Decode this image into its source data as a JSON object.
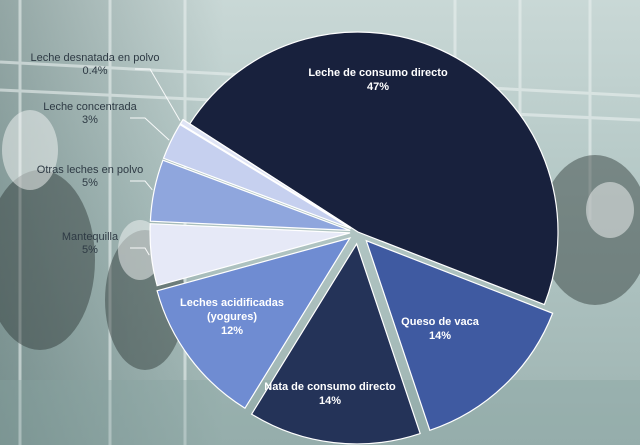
{
  "chart_data": {
    "type": "pie",
    "title": "",
    "slices": [
      {
        "label": "Leche de consumo directo",
        "value": 47,
        "value_label": "47%",
        "color": "#18213d"
      },
      {
        "label": "Queso de vaca",
        "value": 14,
        "value_label": "14%",
        "color": "#3f5aa1"
      },
      {
        "label": "Nata de consumo directo",
        "value": 14,
        "value_label": "14%",
        "color": "#243358"
      },
      {
        "label": "Leches acidificadas (yogures)",
        "label_lines": [
          "Leches acidificadas",
          "(yogures)"
        ],
        "value": 12,
        "value_label": "12%",
        "color": "#6f8cd2"
      },
      {
        "label": "Mantequilla",
        "value": 5,
        "value_label": "5%",
        "color": "#e6e9f7"
      },
      {
        "label": "Otras leches en polvo",
        "value": 5,
        "value_label": "5%",
        "color": "#8fa6dd"
      },
      {
        "label": "Leche concentrada",
        "value": 3,
        "value_label": "3%",
        "color": "#c6d0ef"
      },
      {
        "label": "Leche desnatada en polvo",
        "value": 0.4,
        "value_label": "0.4%",
        "color": "#dfe4f5"
      }
    ]
  }
}
